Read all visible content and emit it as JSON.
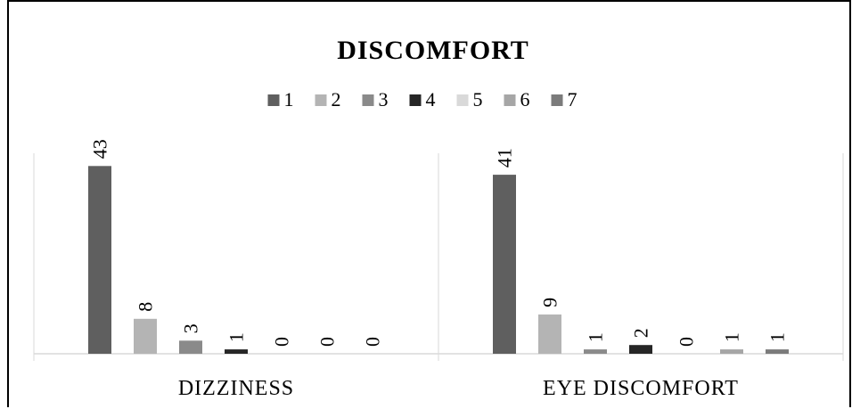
{
  "chart_data": {
    "type": "bar",
    "title": "DISCOMFORT",
    "categories": [
      "DIZZINESS",
      "EYE DISCOMFORT"
    ],
    "series": [
      {
        "name": "1",
        "values": [
          43,
          41
        ],
        "color": "#5f5f5f"
      },
      {
        "name": "2",
        "values": [
          8,
          9
        ],
        "color": "#b4b4b4"
      },
      {
        "name": "3",
        "values": [
          3,
          1
        ],
        "color": "#8a8a8a"
      },
      {
        "name": "4",
        "values": [
          1,
          2
        ],
        "color": "#262626"
      },
      {
        "name": "5",
        "values": [
          0,
          0
        ],
        "color": "#d9d9d9"
      },
      {
        "name": "6",
        "values": [
          0,
          1
        ],
        "color": "#a6a6a6"
      },
      {
        "name": "7",
        "values": [
          0,
          1
        ],
        "color": "#7b7b7b"
      }
    ],
    "ylim": [
      0,
      50
    ],
    "legend_position": "top",
    "grid": false,
    "data_labels": true,
    "data_label_orientation": "rotated-vertical"
  }
}
